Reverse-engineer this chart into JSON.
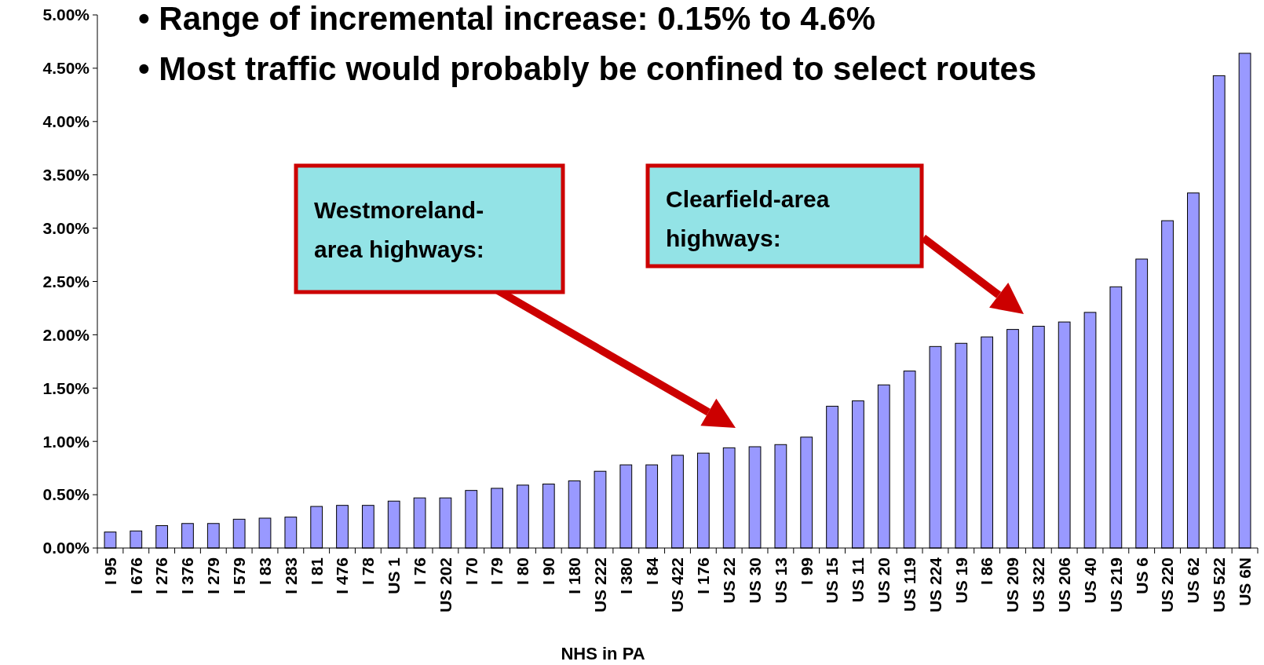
{
  "chart_data": {
    "type": "bar",
    "xlabel": "NHS in PA",
    "categories": [
      "I 95",
      "I 676",
      "I 276",
      "I 376",
      "I 279",
      "I 579",
      "I 83",
      "I 283",
      "I 81",
      "I 476",
      "I 78",
      "US 1",
      "I 76",
      "US 202",
      "I 70",
      "I 79",
      "I 80",
      "I 90",
      "I 180",
      "US 222",
      "I 380",
      "I 84",
      "US 422",
      "I 176",
      "US 22",
      "US 30",
      "US 13",
      "I 99",
      "US 15",
      "US 11",
      "US 20",
      "US 119",
      "US 224",
      "US 19",
      "I 86",
      "US 209",
      "US 322",
      "US 206",
      "US 40",
      "US 219",
      "US 6",
      "US 220",
      "US 62",
      "US 522",
      "US 6N"
    ],
    "values": [
      0.15,
      0.16,
      0.21,
      0.23,
      0.23,
      0.27,
      0.28,
      0.29,
      0.39,
      0.4,
      0.4,
      0.44,
      0.47,
      0.47,
      0.54,
      0.56,
      0.59,
      0.6,
      0.63,
      0.72,
      0.78,
      0.78,
      0.87,
      0.89,
      0.94,
      0.95,
      0.97,
      1.04,
      1.33,
      1.38,
      1.53,
      1.66,
      1.89,
      1.92,
      1.98,
      2.05,
      2.08,
      2.12,
      2.21,
      2.45,
      2.71,
      3.07,
      3.33,
      4.43,
      4.64
    ],
    "color": "#9999ff",
    "ylim": [
      0,
      5
    ],
    "yticks": [
      {
        "value": 0,
        "label": "0.00%"
      },
      {
        "value": 0.5,
        "label": "0.50%"
      },
      {
        "value": 1,
        "label": "1.00%"
      },
      {
        "value": 1.5,
        "label": "1.50%"
      },
      {
        "value": 2,
        "label": "2.00%"
      },
      {
        "value": 2.5,
        "label": "2.50%"
      },
      {
        "value": 3,
        "label": "3.00%"
      },
      {
        "value": 3.5,
        "label": "3.50%"
      },
      {
        "value": 4,
        "label": "4.00%"
      },
      {
        "value": 4.5,
        "label": "4.50%"
      },
      {
        "value": 5,
        "label": "5.00%"
      }
    ],
    "grid": false,
    "annotations": [
      "• Range of incremental increase: 0.15%  to 4.6%",
      "• Most traffic would probably be confined to select routes",
      "Westmoreland-\narea highways:",
      "Clearfield-area\nhighways:"
    ]
  }
}
